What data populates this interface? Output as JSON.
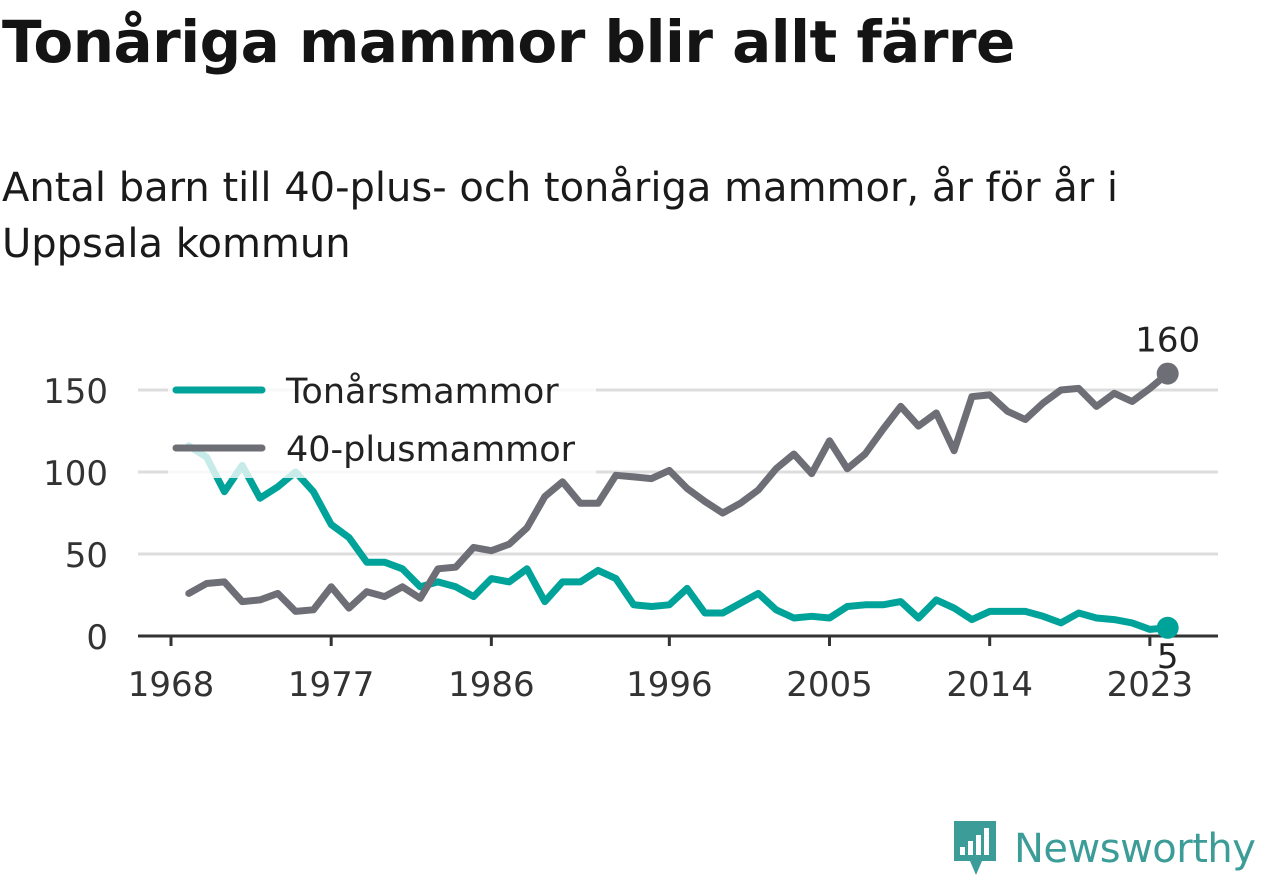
{
  "title": "Tonåriga mammor blir allt färre",
  "subtitle": "Antal barn till 40-plus- och tonåriga mammor, år för år i Uppsala kommun",
  "brand": {
    "name": "Newsworthy",
    "icon": "newsworthy-logo-icon",
    "color": "#3c9c98"
  },
  "colors": {
    "teen": "#00a39a",
    "forty": "#6e6e76",
    "grid": "#dddddd",
    "axis": "#333333"
  },
  "chart_data": {
    "type": "line",
    "x": [
      1969,
      1970,
      1971,
      1972,
      1973,
      1974,
      1975,
      1976,
      1977,
      1978,
      1979,
      1980,
      1981,
      1982,
      1983,
      1984,
      1985,
      1986,
      1987,
      1988,
      1989,
      1990,
      1991,
      1992,
      1993,
      1994,
      1995,
      1996,
      1997,
      1998,
      1999,
      2000,
      2001,
      2002,
      2003,
      2004,
      2005,
      2006,
      2007,
      2008,
      2009,
      2010,
      2011,
      2012,
      2013,
      2014,
      2015,
      2016,
      2017,
      2018,
      2019,
      2020,
      2021,
      2022,
      2023,
      2024
    ],
    "series": [
      {
        "name": "Tonårsmammor",
        "color": "#00a39a",
        "values": [
          116,
          109,
          88,
          104,
          84,
          91,
          100,
          88,
          68,
          60,
          45,
          45,
          41,
          30,
          33,
          30,
          24,
          35,
          33,
          41,
          21,
          33,
          33,
          40,
          35,
          19,
          18,
          19,
          29,
          14,
          14,
          20,
          26,
          16,
          11,
          12,
          11,
          18,
          19,
          19,
          21,
          11,
          22,
          17,
          10,
          15,
          15,
          15,
          12,
          8,
          14,
          11,
          10,
          8,
          4,
          5
        ]
      },
      {
        "name": "40-plusmammor",
        "color": "#6e6e76",
        "values": [
          26,
          32,
          33,
          21,
          22,
          26,
          15,
          16,
          30,
          17,
          27,
          24,
          30,
          23,
          41,
          42,
          54,
          52,
          56,
          66,
          85,
          94,
          81,
          81,
          98,
          97,
          96,
          101,
          90,
          82,
          75,
          81,
          89,
          102,
          111,
          99,
          119,
          102,
          111,
          126,
          140,
          128,
          136,
          113,
          146,
          147,
          137,
          132,
          142,
          150,
          151,
          140,
          148,
          143,
          151,
          160
        ]
      }
    ],
    "xticks": [
      "1968",
      "1977",
      "1986",
      "1996",
      "2005",
      "2014",
      "2023"
    ],
    "yticks": [
      0,
      50,
      100,
      150
    ],
    "ylim": [
      0,
      160
    ],
    "end_labels": {
      "Tonårsmammor": "5",
      "40-plusmammor": "160"
    },
    "legend": "top-left",
    "grid": true
  }
}
